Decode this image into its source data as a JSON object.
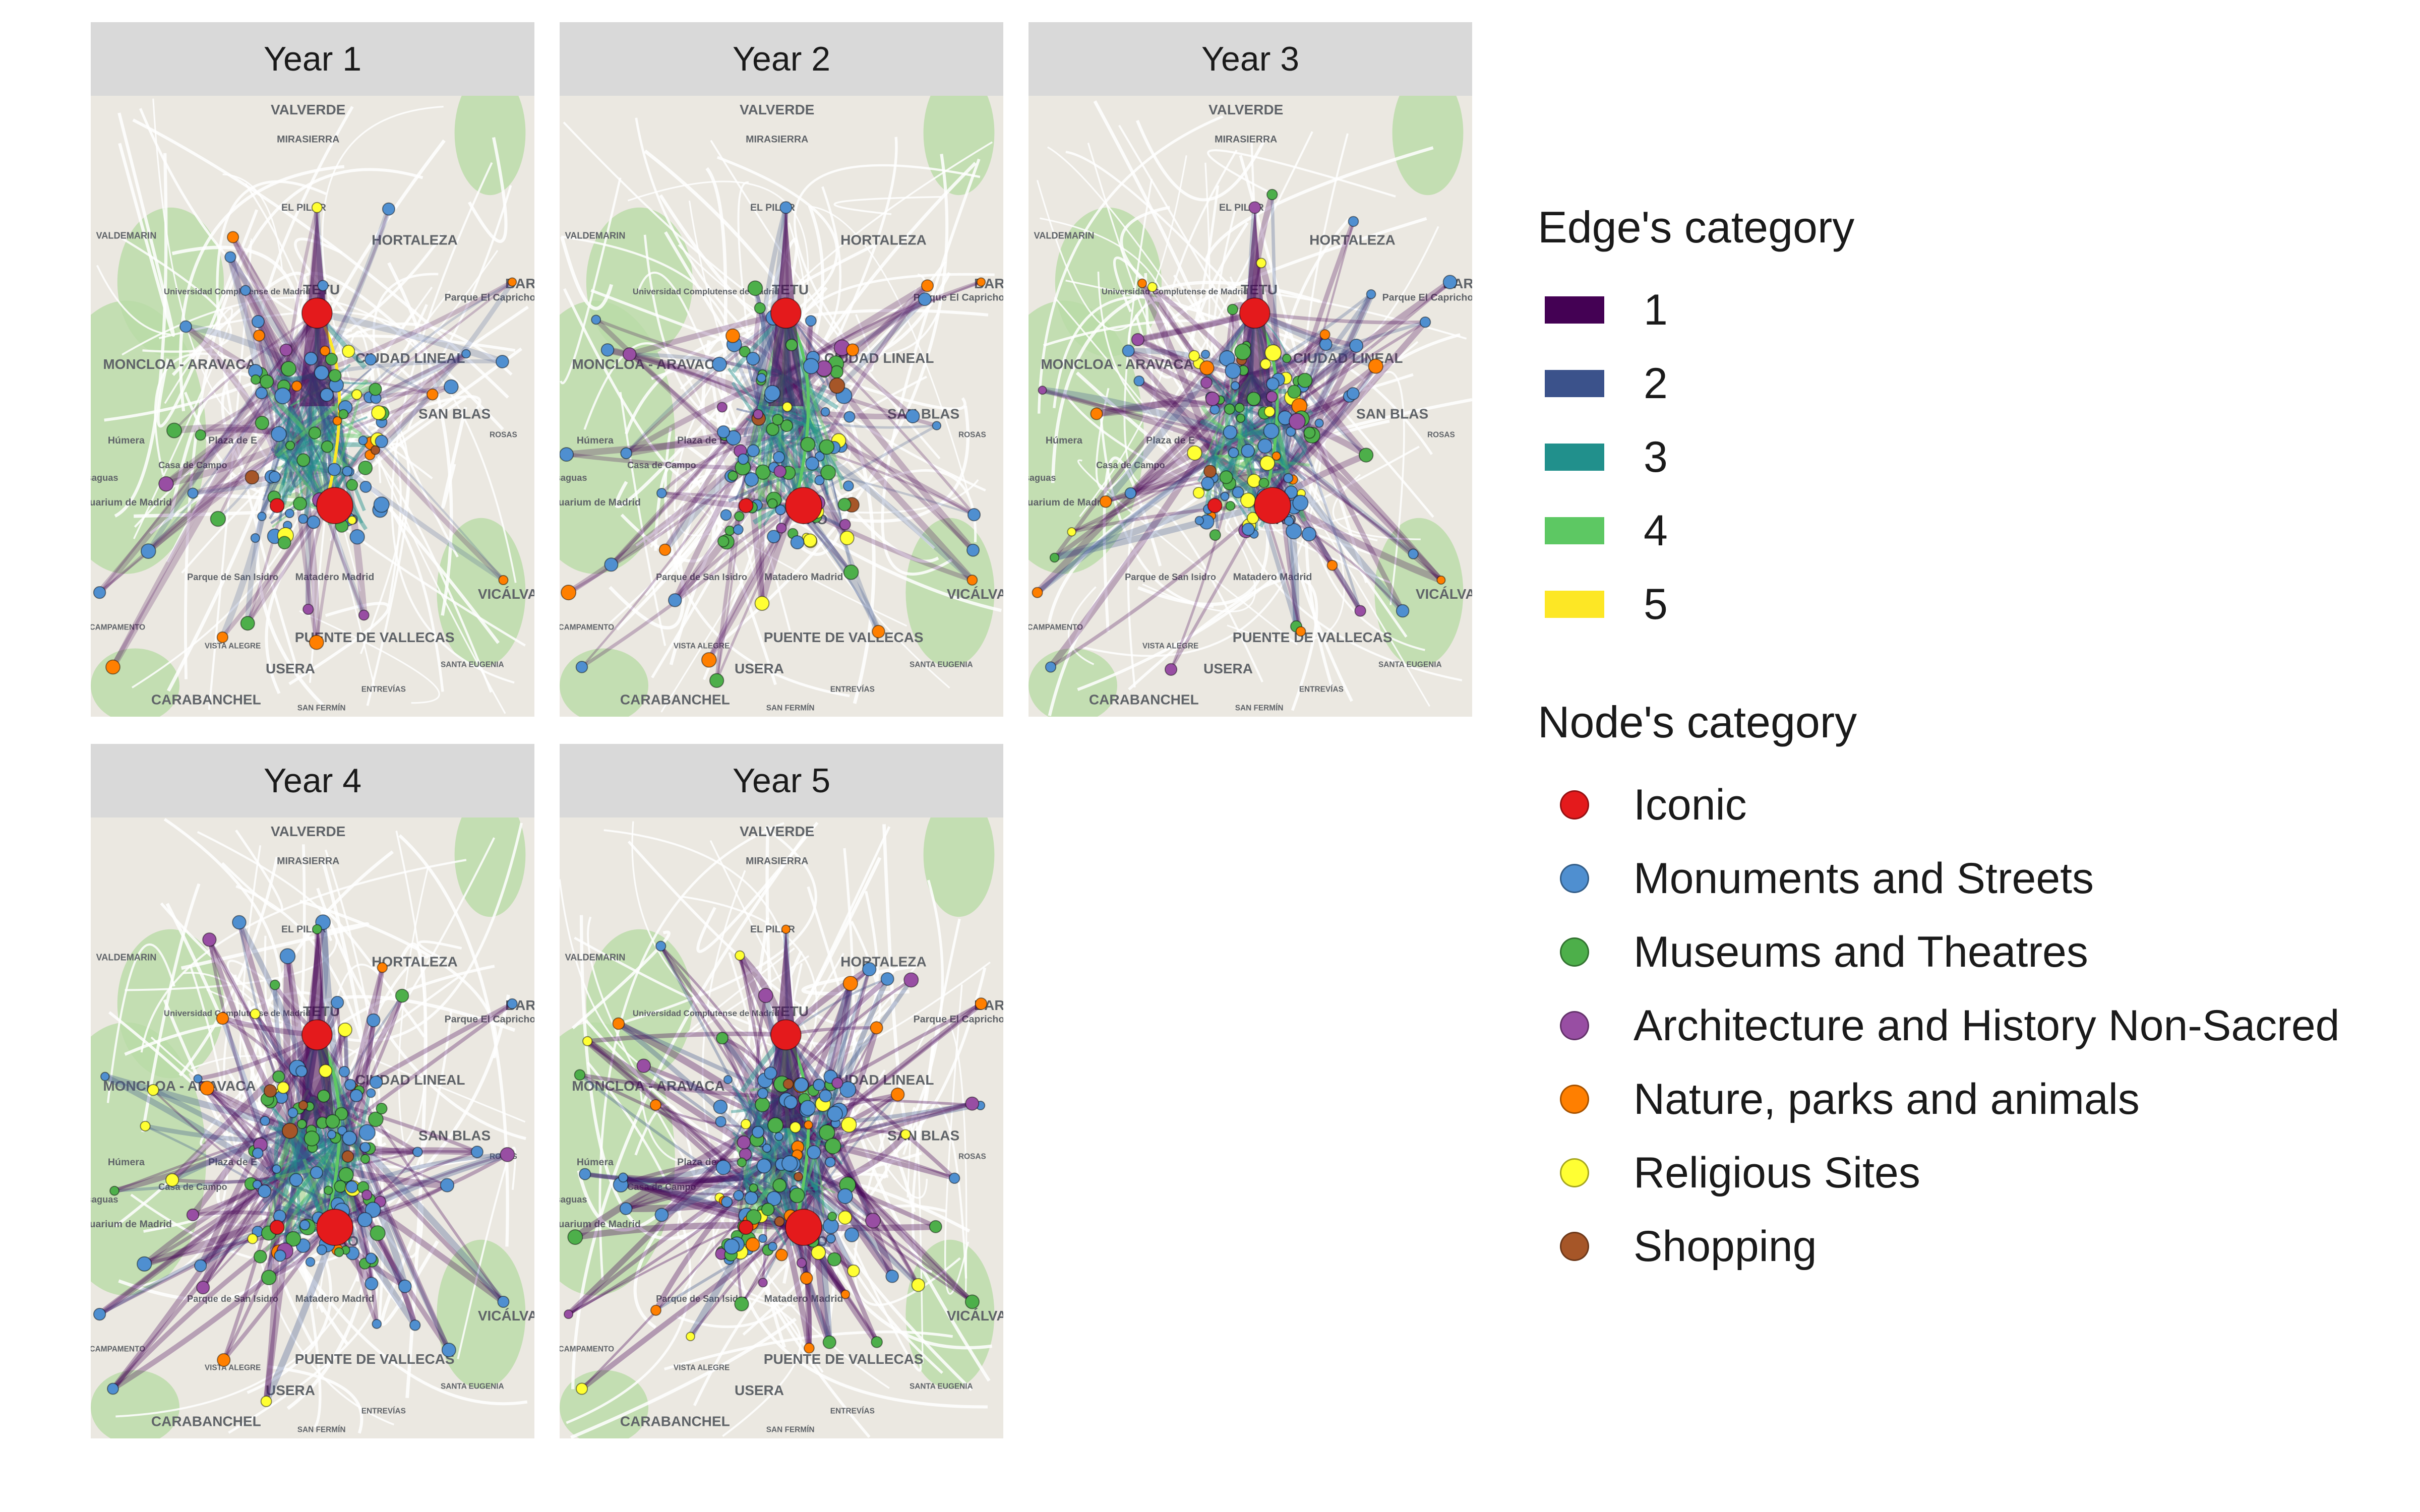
{
  "chart_data": {
    "type": "network-map-facets",
    "facet_titles": [
      "Year 1",
      "Year 2",
      "Year 3",
      "Year 4",
      "Year 5"
    ],
    "basemap_labels": [
      "VALVERDE",
      "MIRASIERRA",
      "EL PILAR",
      "HORTALEZA",
      "VALDEMARIN",
      "Universidad Complutense de Madrid",
      "MONCLOA - ARAVACA",
      "CIUDAD LINEAL",
      "SAN BLAS",
      "ROSAS",
      "Parque El Capricho",
      "BARA",
      "Húmera",
      "Casa de Campo",
      "Plaza de E",
      "uarium de Madrid",
      "osaguas",
      "Parque de San Isidro",
      "Matadero Madrid",
      "PUENTE DE VALLECAS",
      "VICÁLVA",
      "USERA",
      "CARABANCHEL",
      "VISTA ALEGRE",
      "CAMPAMENTO",
      "SANTA EUGENIA",
      "ENTREVÍAS",
      "SAN FERMÍN",
      "RO",
      "TETU"
    ],
    "edge_legend": {
      "title": "Edge's category",
      "items": [
        {
          "label": "1",
          "color": "#440154"
        },
        {
          "label": "2",
          "color": "#3b528b"
        },
        {
          "label": "3",
          "color": "#21908c"
        },
        {
          "label": "4",
          "color": "#5dc863"
        },
        {
          "label": "5",
          "color": "#fde725"
        }
      ]
    },
    "node_legend": {
      "title": "Node's category",
      "items": [
        {
          "label": "Iconic",
          "color": "#e41a1c"
        },
        {
          "label": "Monuments and Streets",
          "color": "#4f8fd0"
        },
        {
          "label": "Museums and Theatres",
          "color": "#4daf4a"
        },
        {
          "label": "Architecture and History Non-Sacred",
          "color": "#984ea3"
        },
        {
          "label": "Nature, parks and animals",
          "color": "#ff7f00"
        },
        {
          "label": "Religious Sites",
          "color": "#ffff33"
        },
        {
          "label": "Shopping",
          "color": "#a65628"
        }
      ]
    }
  }
}
